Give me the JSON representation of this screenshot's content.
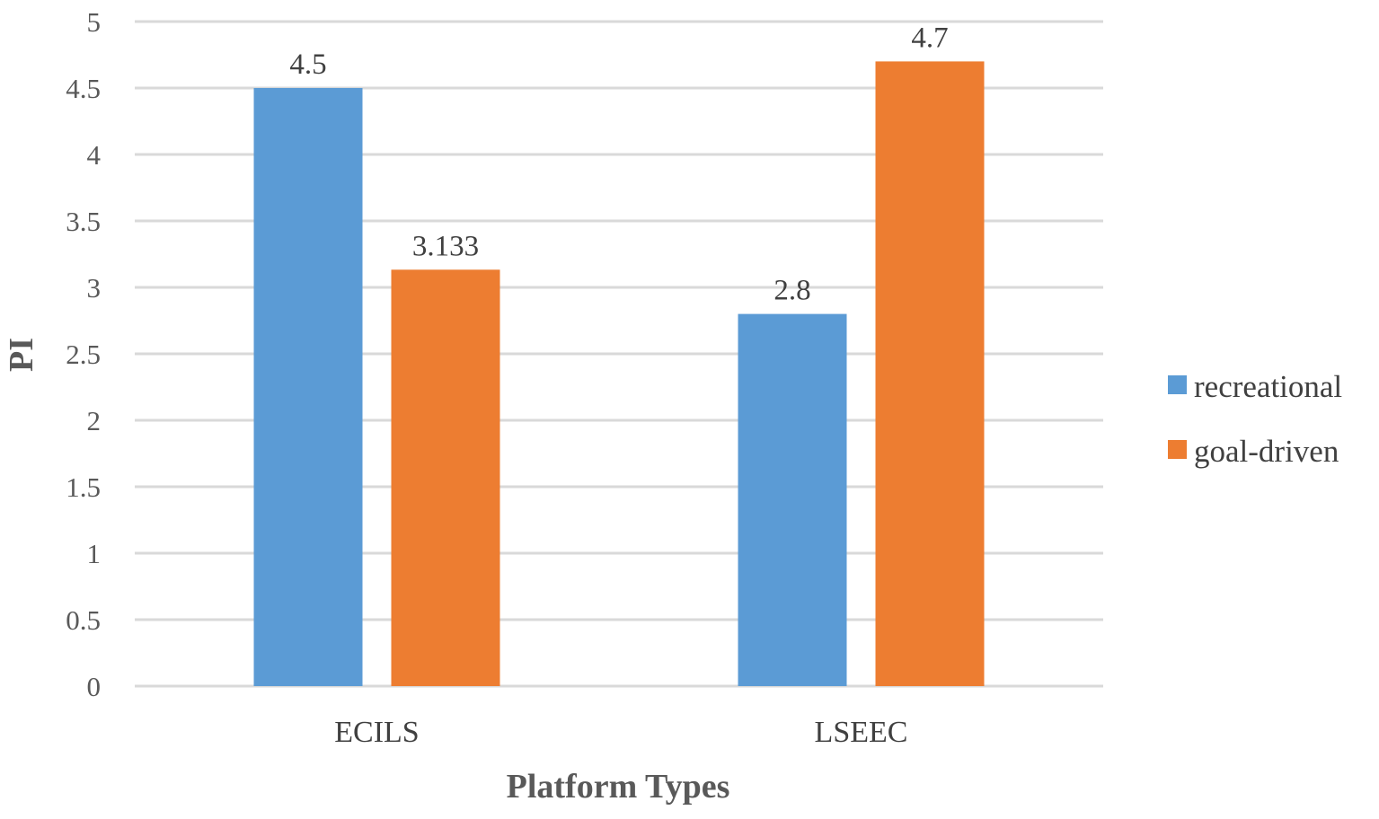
{
  "chart_data": {
    "type": "bar",
    "categories": [
      "ECILS",
      "LSEEC"
    ],
    "series": [
      {
        "name": "recreational",
        "color": "#5b9bd5",
        "values": [
          4.5,
          2.8
        ],
        "labels": [
          "4.5",
          "2.8"
        ]
      },
      {
        "name": "goal-driven",
        "color": "#ed7d31",
        "values": [
          3.133,
          4.7
        ],
        "labels": [
          "3.133",
          "4.7"
        ]
      }
    ],
    "title": "",
    "xlabel": "Platform Types",
    "ylabel": "PI",
    "ylim": [
      0,
      5
    ],
    "yticks": [
      0,
      0.5,
      1,
      1.5,
      2,
      2.5,
      3,
      3.5,
      4,
      4.5,
      5
    ],
    "ytick_labels": [
      "0",
      "0.5",
      "1",
      "1.5",
      "2",
      "2.5",
      "3",
      "3.5",
      "4",
      "4.5",
      "5"
    ],
    "grid": true,
    "legend_position": "right"
  }
}
